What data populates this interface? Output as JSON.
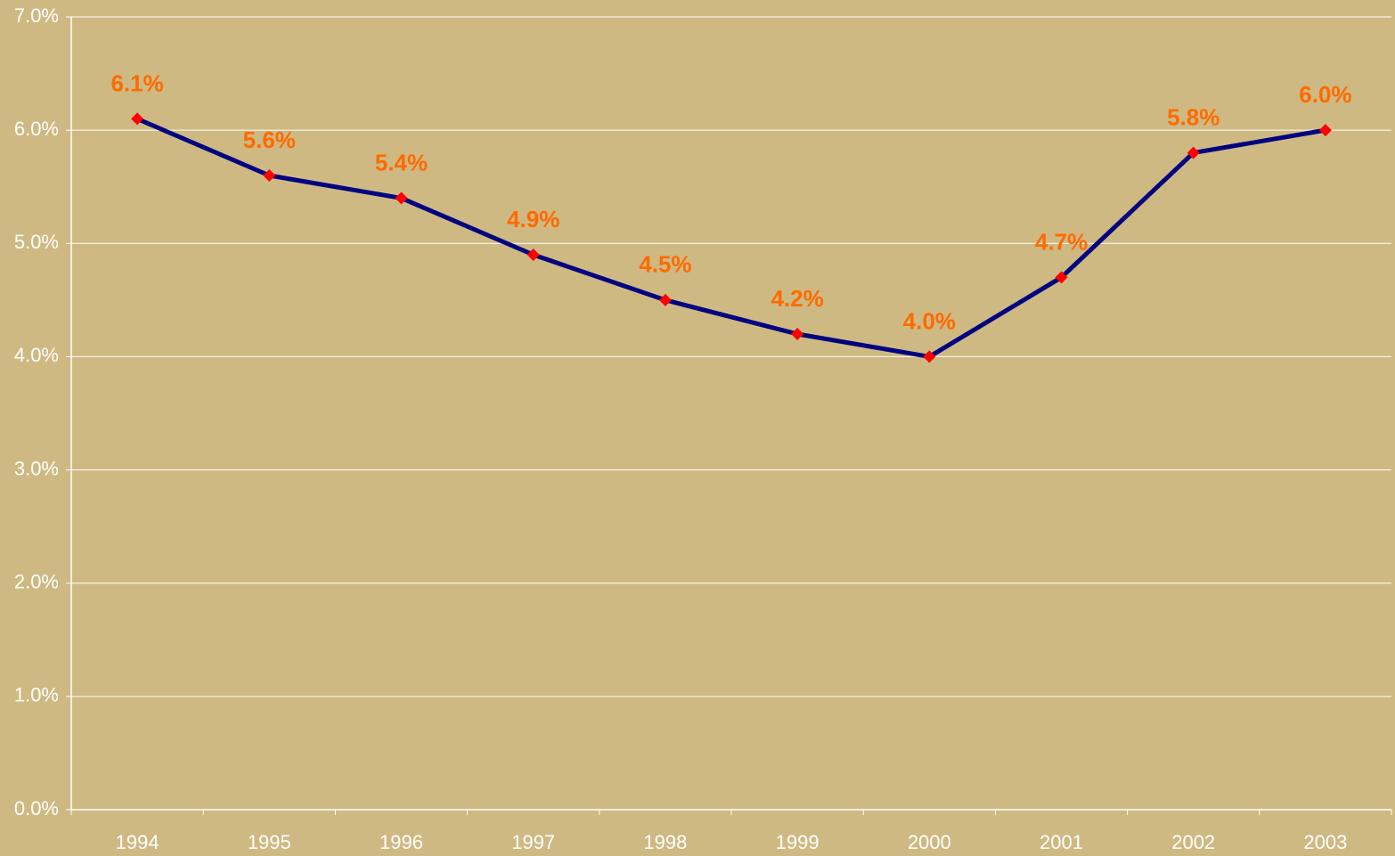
{
  "chart_data": {
    "type": "line",
    "categories": [
      "1994",
      "1995",
      "1996",
      "1997",
      "1998",
      "1999",
      "2000",
      "2001",
      "2002",
      "2003"
    ],
    "series": [
      {
        "color": "#000080",
        "marker_color": "#ff0000",
        "values": [
          6.1,
          5.6,
          5.4,
          4.9,
          4.5,
          4.2,
          4.0,
          4.7,
          5.8,
          6.0
        ],
        "value_labels": [
          "6.1%",
          "5.6%",
          "5.4%",
          "4.9%",
          "4.5%",
          "4.2%",
          "4.0%",
          "4.7%",
          "5.8%",
          "6.0%"
        ]
      }
    ],
    "ylim": [
      0,
      7
    ],
    "yticks": [
      {
        "value": 0,
        "label": "0.0%"
      },
      {
        "value": 1,
        "label": "1.0%"
      },
      {
        "value": 2,
        "label": "2.0%"
      },
      {
        "value": 3,
        "label": "3.0%"
      },
      {
        "value": 4,
        "label": "4.0%"
      },
      {
        "value": 5,
        "label": "5.0%"
      },
      {
        "value": 6,
        "label": "6.0%"
      },
      {
        "value": 7,
        "label": "7.0%"
      }
    ],
    "grid": true
  }
}
